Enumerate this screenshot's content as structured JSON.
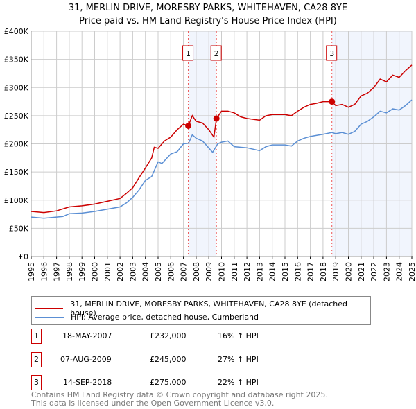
{
  "chart_data": {
    "type": "line",
    "title": "31, MERLIN DRIVE, MORESBY PARKS, WHITEHAVEN, CA28 8YE",
    "subtitle": "Price paid vs. HM Land Registry's House Price Index (HPI)",
    "xlim": [
      1995,
      2025
    ],
    "ylim": [
      0,
      400000
    ],
    "x_ticks": [
      "1995",
      "1996",
      "1997",
      "1998",
      "1999",
      "2000",
      "2001",
      "2002",
      "2003",
      "2004",
      "2005",
      "2006",
      "2007",
      "2008",
      "2009",
      "2010",
      "2011",
      "2012",
      "2013",
      "2014",
      "2015",
      "2016",
      "2017",
      "2018",
      "2019",
      "2020",
      "2021",
      "2022",
      "2023",
      "2024",
      "2025"
    ],
    "y_ticks": [
      {
        "v": 0,
        "label": "£0"
      },
      {
        "v": 50000,
        "label": "£50K"
      },
      {
        "v": 100000,
        "label": "£100K"
      },
      {
        "v": 150000,
        "label": "£150K"
      },
      {
        "v": 200000,
        "label": "£200K"
      },
      {
        "v": 250000,
        "label": "£250K"
      },
      {
        "v": 300000,
        "label": "£300K"
      },
      {
        "v": 350000,
        "label": "£350K"
      },
      {
        "v": 400000,
        "label": "£400K"
      }
    ],
    "grid": true,
    "series": [
      {
        "name": "31, MERLIN DRIVE, MORESBY PARKS, WHITEHAVEN, CA28 8YE (detached house)",
        "color": "#cc0000",
        "x": [
          1995,
          1996,
          1997,
          1998,
          1999,
          2000,
          2001,
          2002,
          2002.5,
          2003,
          2003.5,
          2004,
          2004.5,
          2004.7,
          2005,
          2005.5,
          2006,
          2006.5,
          2007,
          2007.38,
          2007.7,
          2008,
          2008.5,
          2009,
          2009.4,
          2009.6,
          2010,
          2010.5,
          2011,
          2011.5,
          2012,
          2013,
          2013.5,
          2014,
          2015,
          2015.5,
          2016,
          2016.5,
          2017,
          2017.5,
          2018,
          2018.7,
          2019,
          2019.5,
          2020,
          2020.5,
          2021,
          2021.5,
          2022,
          2022.5,
          2023,
          2023.5,
          2024,
          2024.5,
          2025
        ],
        "y": [
          80000,
          78000,
          81000,
          88000,
          90000,
          93000,
          98000,
          103000,
          112000,
          122000,
          140000,
          157000,
          175000,
          194000,
          192000,
          205000,
          212000,
          225000,
          235000,
          232000,
          250000,
          240000,
          237000,
          225000,
          212000,
          245000,
          258000,
          258000,
          255000,
          248000,
          245000,
          242000,
          250000,
          252000,
          252000,
          250000,
          258000,
          265000,
          270000,
          272000,
          275000,
          275000,
          268000,
          270000,
          265000,
          270000,
          285000,
          290000,
          300000,
          315000,
          310000,
          322000,
          318000,
          330000,
          340000
        ]
      },
      {
        "name": "HPI: Average price, detached house, Cumberland",
        "color": "#5b8fd4",
        "x": [
          1995,
          1996,
          1997,
          1997.5,
          1998,
          1999,
          2000,
          2001,
          2002,
          2002.5,
          2003,
          2003.5,
          2004,
          2004.5,
          2005,
          2005.3,
          2006,
          2006.5,
          2007,
          2007.4,
          2007.7,
          2008,
          2008.5,
          2009.3,
          2009.7,
          2010,
          2010.5,
          2011,
          2012,
          2013,
          2013.5,
          2014,
          2015,
          2015.5,
          2016,
          2016.5,
          2017,
          2017.5,
          2018,
          2018.7,
          2019,
          2019.5,
          2020,
          2020.5,
          2021,
          2021.5,
          2022,
          2022.5,
          2023,
          2023.5,
          2024,
          2024.5,
          2025
        ],
        "y": [
          70000,
          68000,
          70000,
          71000,
          76000,
          77000,
          80000,
          84000,
          88000,
          95000,
          105000,
          118000,
          135000,
          142000,
          168000,
          165000,
          182000,
          186000,
          200000,
          201000,
          216000,
          210000,
          205000,
          185000,
          200000,
          203000,
          205000,
          195000,
          193000,
          188000,
          195000,
          198000,
          198000,
          196000,
          205000,
          210000,
          213000,
          215000,
          217000,
          220000,
          218000,
          220000,
          217000,
          222000,
          235000,
          240000,
          248000,
          258000,
          255000,
          262000,
          260000,
          268000,
          278000
        ]
      }
    ],
    "sales": [
      {
        "n": "1",
        "x": 2007.38,
        "y": 232000,
        "date": "18-MAY-2007",
        "price": "£232,000",
        "hpi": "16% ↑ HPI"
      },
      {
        "n": "2",
        "x": 2009.6,
        "y": 245000,
        "date": "07-AUG-2009",
        "price": "£245,000",
        "hpi": "27% ↑ HPI"
      },
      {
        "n": "3",
        "x": 2018.7,
        "y": 275000,
        "date": "14-SEP-2018",
        "price": "£275,000",
        "hpi": "22% ↑ HPI"
      }
    ],
    "shaded_ranges": [
      [
        2007.38,
        2009.6
      ],
      [
        2018.7,
        2025
      ]
    ]
  },
  "footer": {
    "line1": "Contains HM Land Registry data © Crown copyright and database right 2025.",
    "line2": "This data is licensed under the Open Government Licence v3.0."
  }
}
